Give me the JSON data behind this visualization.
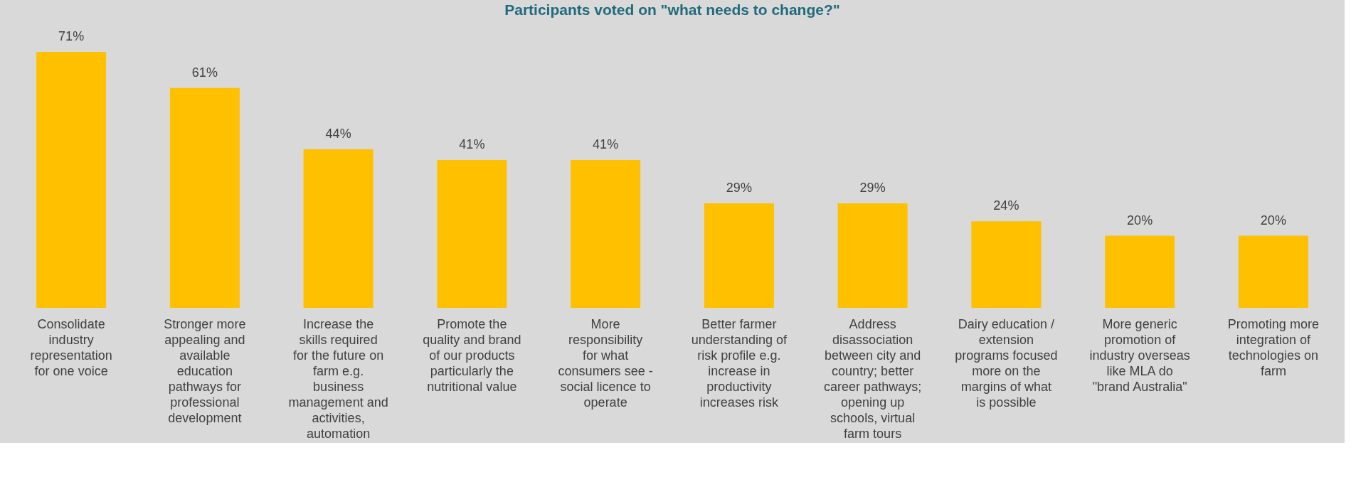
{
  "chart_data": {
    "type": "bar",
    "title": "Participants voted on \"what needs to change?\"",
    "categories": [
      "Consolidate industry representation for one voice",
      "Stronger more appealing and available education pathways for professional development",
      "Increase the skills required for the future on farm e.g. business management and activities, automation",
      "Promote the quality and brand of our products particularly the nutritional value",
      "More responsibility for what consumers see - social licence to operate",
      "Better farmer understanding of risk profile e.g. increase in productivity increases risk",
      "Address disassociation between city and country; better career pathways; opening up schools, virtual farm tours",
      "Dairy education / extension programs focused more on the margins of what is possible",
      "More generic promotion of industry overseas like MLA do \"brand Australia\"",
      "Promoting more integration of technologies on farm"
    ],
    "values": [
      71,
      61,
      44,
      41,
      41,
      29,
      29,
      24,
      20,
      20
    ],
    "value_labels": [
      "71%",
      "61%",
      "44%",
      "41%",
      "41%",
      "29%",
      "29%",
      "24%",
      "20%",
      "20%"
    ],
    "color": "#ffc000"
  }
}
